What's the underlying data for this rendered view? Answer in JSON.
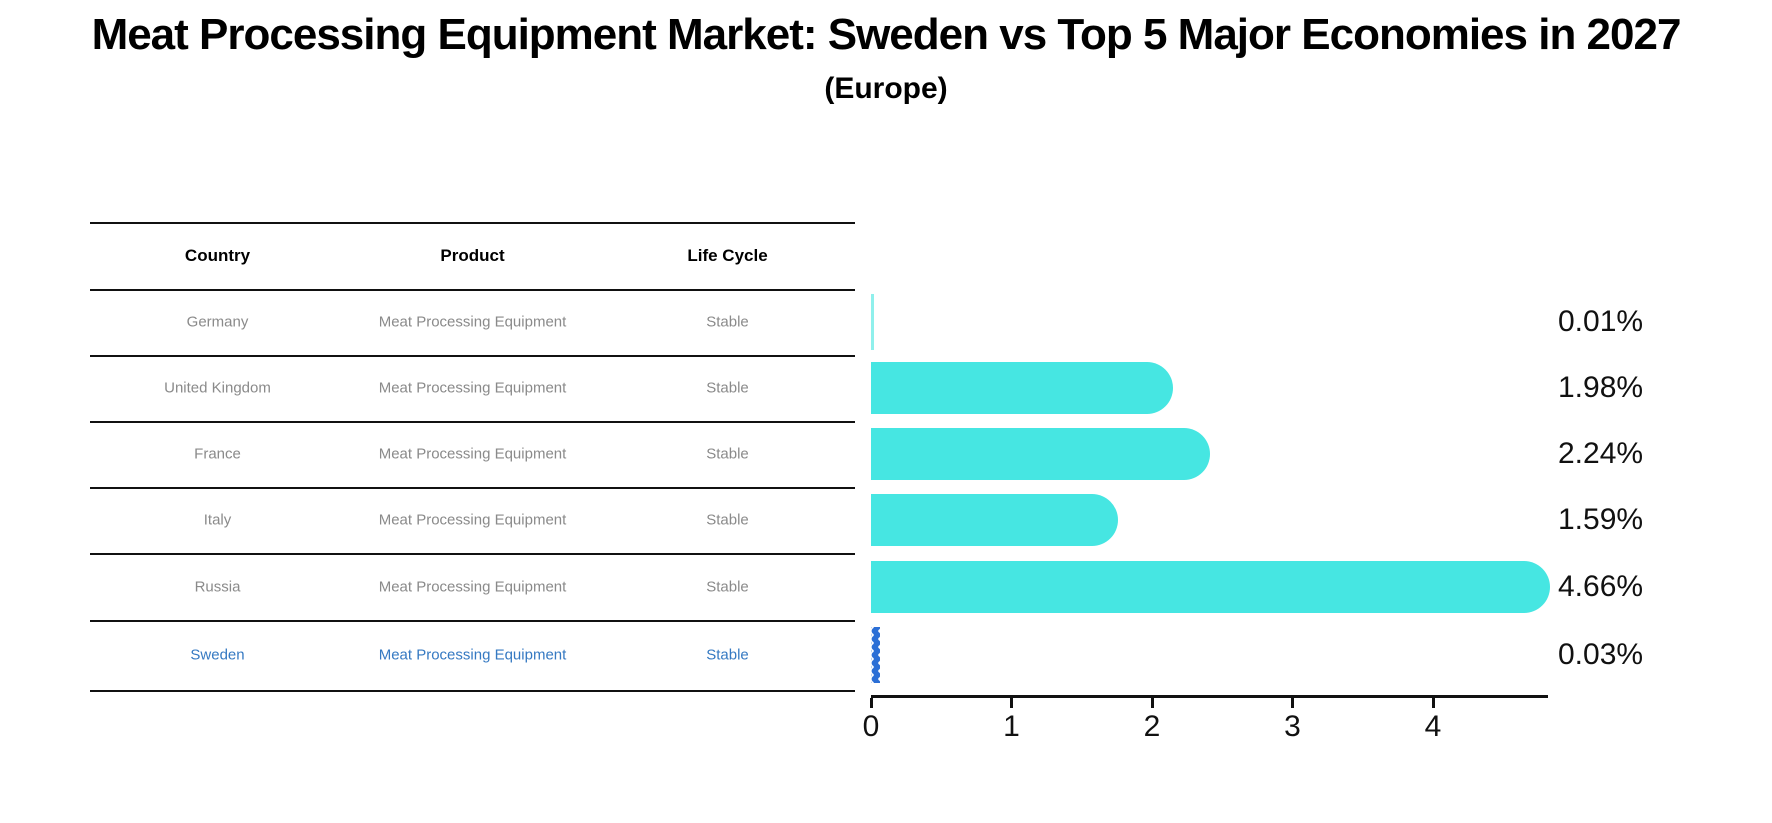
{
  "title": "Meat Processing Equipment Market: Sweden vs Top 5 Major Economies in 2027",
  "subtitle": "(Europe)",
  "table": {
    "headers": [
      "Country",
      "Product",
      "Life Cycle"
    ],
    "rows": [
      {
        "country": "Germany",
        "product": "Meat Processing Equipment",
        "life_cycle": "Stable",
        "highlight": false
      },
      {
        "country": "United Kingdom",
        "product": "Meat Processing Equipment",
        "life_cycle": "Stable",
        "highlight": false
      },
      {
        "country": "France",
        "product": "Meat Processing Equipment",
        "life_cycle": "Stable",
        "highlight": false
      },
      {
        "country": "Italy",
        "product": "Meat Processing Equipment",
        "life_cycle": "Stable",
        "highlight": false
      },
      {
        "country": "Russia",
        "product": "Meat Processing Equipment",
        "life_cycle": "Stable",
        "highlight": false
      },
      {
        "country": "Sweden",
        "product": "Meat Processing Equipment",
        "life_cycle": "Stable",
        "highlight": true
      }
    ]
  },
  "chart_data": {
    "type": "bar",
    "orientation": "horizontal",
    "categories": [
      "Germany",
      "United Kingdom",
      "France",
      "Italy",
      "Russia",
      "Sweden"
    ],
    "values": [
      0.01,
      1.98,
      2.24,
      1.59,
      4.66,
      0.03
    ],
    "value_labels": [
      "0.01%",
      "1.98%",
      "2.24%",
      "1.59%",
      "4.66%",
      "0.03%"
    ],
    "xticks": [
      0,
      1,
      2,
      3,
      4
    ],
    "xlim": [
      0,
      4.82
    ],
    "xlabel": "",
    "ylabel": "",
    "grid": false,
    "legend": "none",
    "bar_color": "#46E6E2",
    "thin_bar_color": "#8FF0EC",
    "highlight_color": "#2B6FD6",
    "highlight_text_color": "#3579C2",
    "highlight_index": 5
  }
}
